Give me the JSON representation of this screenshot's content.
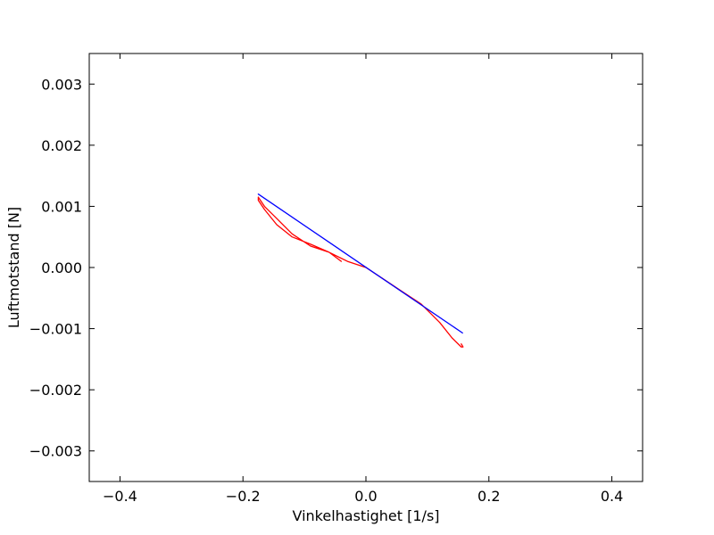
{
  "chart_data": {
    "type": "line",
    "title": "",
    "xlabel": "Vinkelhastighet [1/s]",
    "ylabel": "Luftmotstand [N]",
    "xlim": [
      -0.45,
      0.45
    ],
    "ylim": [
      -0.0035,
      0.0035
    ],
    "xticks": [
      -0.4,
      -0.2,
      0.0,
      0.2,
      0.4
    ],
    "xtick_labels": [
      "−0.4",
      "−0.2",
      "0.0",
      "0.2",
      "0.4"
    ],
    "yticks": [
      0.003,
      0.002,
      0.001,
      0.0,
      -0.001,
      -0.002,
      -0.003
    ],
    "ytick_labels": [
      "0.003",
      "0.002",
      "0.001",
      "0.000",
      "−0.001",
      "−0.002",
      "−0.003"
    ],
    "grid": false,
    "series": [
      {
        "color": "#ff0000",
        "x": [
          -0.04,
          -0.06,
          -0.09,
          -0.12,
          -0.145,
          -0.165,
          -0.175,
          -0.175,
          -0.165,
          -0.145,
          -0.12,
          -0.09,
          -0.06,
          -0.03,
          0.0,
          0.03,
          0.06,
          0.09,
          0.12,
          0.14,
          0.155,
          0.158,
          0.155
        ],
        "y": [
          0.0001,
          0.00025,
          0.00035,
          0.00055,
          0.0008,
          0.001,
          0.00115,
          0.0011,
          0.00095,
          0.0007,
          0.0005,
          0.00038,
          0.00025,
          0.0001,
          0.0,
          -0.0002,
          -0.0004,
          -0.0006,
          -0.0009,
          -0.00115,
          -0.0013,
          -0.0013,
          -0.00125
        ]
      },
      {
        "color": "#0000ff",
        "x": [
          -0.175,
          0.157
        ],
        "y": [
          0.0012,
          -0.00107
        ]
      }
    ]
  }
}
